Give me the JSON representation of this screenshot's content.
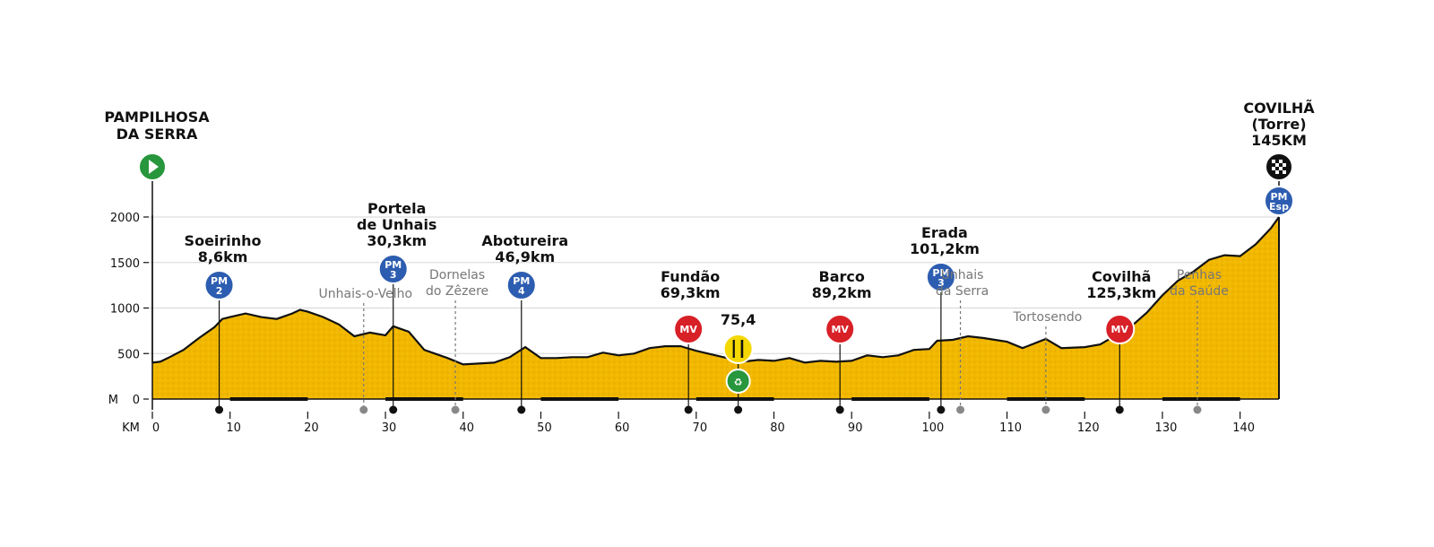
{
  "chart_data": {
    "type": "area",
    "xlabel": "KM",
    "ylabel": "M",
    "xlim": [
      0,
      145
    ],
    "ylim": [
      0,
      2000
    ],
    "x_ticks": [
      0,
      10,
      20,
      30,
      40,
      50,
      60,
      70,
      80,
      90,
      100,
      110,
      120,
      130,
      140
    ],
    "y_ticks": [
      0,
      500,
      1000,
      1500,
      2000
    ],
    "grid": true,
    "colors": {
      "fill": "#f2b800",
      "outline": "#111111",
      "pm": "#2d5db0",
      "mv": "#d82027",
      "start": "#27963c",
      "feed": "#f4d800",
      "eco": "#27963c"
    },
    "series": [
      {
        "x": [
          0,
          1,
          2,
          4,
          6,
          8,
          9,
          10,
          12,
          14,
          16,
          18,
          19,
          20,
          22,
          24,
          26,
          28,
          30,
          31,
          33,
          35,
          38,
          40,
          42,
          44,
          46,
          48,
          50,
          52,
          54,
          56,
          58,
          60,
          62,
          64,
          66,
          68,
          70,
          72,
          74,
          76,
          78,
          80,
          82,
          84,
          86,
          88,
          90,
          92,
          94,
          96,
          98,
          100,
          101,
          103,
          105,
          107,
          110,
          112,
          115,
          117,
          120,
          122,
          124,
          126,
          128,
          130,
          132,
          134,
          136,
          138,
          140,
          142,
          144,
          145
        ],
        "y": [
          400,
          410,
          450,
          540,
          670,
          790,
          880,
          900,
          940,
          900,
          880,
          940,
          980,
          960,
          900,
          820,
          690,
          730,
          700,
          800,
          740,
          540,
          450,
          380,
          390,
          400,
          460,
          570,
          450,
          450,
          460,
          460,
          510,
          480,
          500,
          560,
          580,
          580,
          530,
          490,
          450,
          410,
          430,
          420,
          450,
          400,
          420,
          410,
          420,
          480,
          460,
          480,
          540,
          550,
          640,
          650,
          690,
          670,
          630,
          560,
          660,
          560,
          570,
          600,
          700,
          800,
          950,
          1140,
          1300,
          1400,
          1530,
          1580,
          1570,
          1700,
          1880,
          2000
        ]
      }
    ]
  },
  "labels": {
    "xlabel": "KM",
    "ylabel_prefix": "M",
    "y_ticks": [
      "0",
      "500",
      "1000",
      "1500",
      "2000"
    ],
    "x_ticks": [
      "0",
      "10",
      "20",
      "30",
      "40",
      "50",
      "60",
      "70",
      "80",
      "90",
      "100",
      "110",
      "120",
      "130",
      "140"
    ]
  },
  "start": {
    "line1": "PAMPILHOSA",
    "line2": "DA SERRA"
  },
  "finish": {
    "line1": "COVILHÃ",
    "line2": "(Torre)",
    "line3": "145KM"
  },
  "badges": {
    "pm": "PM",
    "mv": "MV",
    "esp": "Esp"
  },
  "climbs": [
    {
      "km": 8.6,
      "name": [
        "Soeirinho",
        "8,6km"
      ],
      "cat": "2"
    },
    {
      "km": 31,
      "name": [
        "Portela",
        "de Unhais",
        "30,3km"
      ],
      "cat": "3"
    },
    {
      "km": 47.5,
      "name": [
        "Abotureira",
        "46,9km"
      ],
      "cat": "4"
    },
    {
      "km": 101.5,
      "name": [
        "Erada",
        "101,2km"
      ],
      "cat": "3"
    }
  ],
  "sprints": [
    {
      "km": 69,
      "name": [
        "Fundão",
        "69,3km"
      ]
    },
    {
      "km": 88.5,
      "name": [
        "Barco",
        "89,2km"
      ]
    },
    {
      "km": 124.5,
      "name": [
        "Covilhã",
        "125,3km"
      ]
    }
  ],
  "feed": {
    "km": 75.4,
    "label": "75,4"
  },
  "places": [
    {
      "km": 27.2,
      "name": [
        "Unhais-o-Velho"
      ]
    },
    {
      "km": 39,
      "name": [
        "Dornelas",
        "do Zêzere"
      ]
    },
    {
      "km": 104,
      "name": [
        "Unhais",
        "da Serra"
      ]
    },
    {
      "km": 115,
      "name": [
        "Tortosendo"
      ]
    },
    {
      "km": 134.5,
      "name": [
        "Penhas",
        "da Saúde"
      ]
    }
  ]
}
